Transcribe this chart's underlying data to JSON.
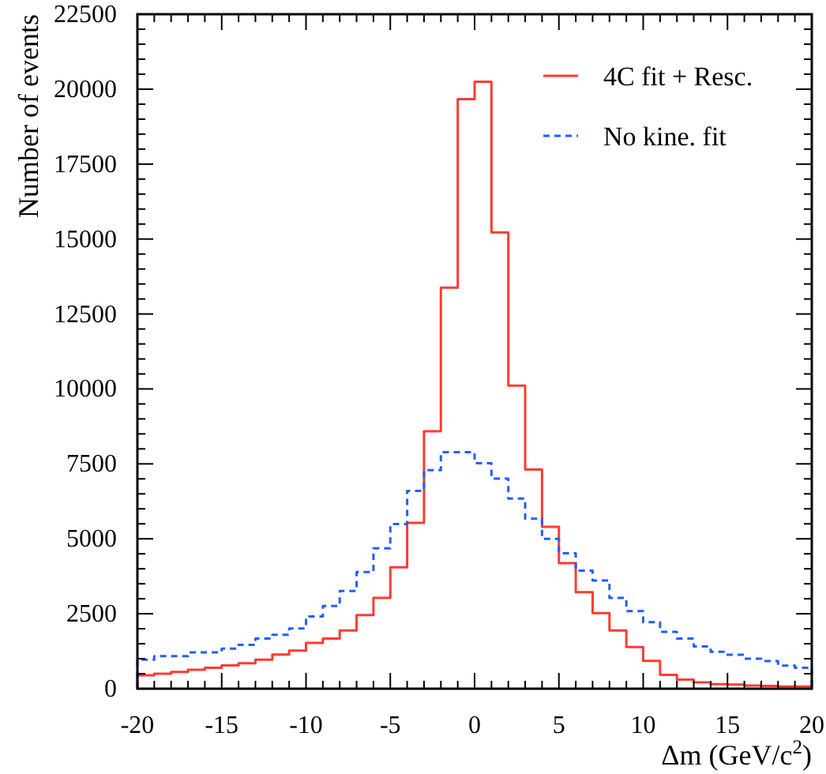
{
  "chart_data": {
    "type": "histogram",
    "xlabel": "Δm (GeV/c$^{2}$)",
    "ylabel": "Number of events",
    "bins": [
      -20,
      -19,
      -18,
      -17,
      -16,
      -15,
      -14,
      -13,
      -12,
      -11,
      -10,
      -9,
      -8,
      -7,
      -6,
      -5,
      -4,
      -3,
      -2,
      -1,
      0,
      1,
      2,
      3,
      4,
      5,
      6,
      7,
      8,
      9,
      10,
      11,
      12,
      13,
      14,
      15,
      16,
      17,
      18,
      19,
      20
    ],
    "series": [
      {
        "name": "4C fit + Resc.",
        "color": "#ff3b2f",
        "line_style": "solid",
        "values": [
          450,
          500,
          560,
          630,
          700,
          775,
          850,
          970,
          1140,
          1270,
          1530,
          1670,
          1940,
          2460,
          3030,
          4050,
          5530,
          8590,
          13380,
          19670,
          20250,
          15220,
          10110,
          7310,
          5400,
          4190,
          3220,
          2520,
          1940,
          1390,
          930,
          460,
          300,
          210,
          150,
          140,
          105,
          90,
          70,
          70
        ]
      },
      {
        "name": "No kine. fit",
        "color": "#1f5fff",
        "line_style": "dashed",
        "values": [
          970,
          1090,
          1090,
          1210,
          1210,
          1340,
          1460,
          1670,
          1800,
          2010,
          2410,
          2760,
          3260,
          3890,
          4680,
          5490,
          6600,
          7290,
          7890,
          7890,
          7520,
          7010,
          6340,
          5670,
          5000,
          4520,
          3940,
          3610,
          3030,
          2590,
          2220,
          1900,
          1670,
          1410,
          1230,
          1130,
          1000,
          920,
          770,
          700
        ]
      }
    ],
    "xlim": [
      -20,
      20
    ],
    "xticks": [
      -20,
      {
        "value": -19,
        "label": null
      },
      {
        "value": -18,
        "label": null
      },
      {
        "value": -17,
        "label": null
      },
      {
        "value": -16,
        "label": null
      },
      -15,
      {
        "value": -14,
        "label": null
      },
      {
        "value": -13,
        "label": null
      },
      {
        "value": -12,
        "label": null
      },
      {
        "value": -11,
        "label": null
      },
      -10,
      {
        "value": -9,
        "label": null
      },
      {
        "value": -8,
        "label": null
      },
      {
        "value": -7,
        "label": null
      },
      {
        "value": -6,
        "label": null
      },
      -5,
      {
        "value": -4,
        "label": null
      },
      {
        "value": -3,
        "label": null
      },
      {
        "value": -2,
        "label": null
      },
      {
        "value": -1,
        "label": null
      },
      0,
      {
        "value": 1,
        "label": null
      },
      {
        "value": 2,
        "label": null
      },
      {
        "value": 3,
        "label": null
      },
      {
        "value": 4,
        "label": null
      },
      5,
      {
        "value": 6,
        "label": null
      },
      {
        "value": 7,
        "label": null
      },
      {
        "value": 8,
        "label": null
      },
      {
        "value": 9,
        "label": null
      },
      10,
      {
        "value": 11,
        "label": null
      },
      {
        "value": 12,
        "label": null
      },
      {
        "value": 13,
        "label": null
      },
      {
        "value": 14,
        "label": null
      },
      15,
      {
        "value": 16,
        "label": null
      },
      {
        "value": 17,
        "label": null
      },
      {
        "value": 18,
        "label": null
      },
      {
        "value": 19,
        "label": null
      },
      20
    ],
    "ylim": [
      0,
      22500
    ],
    "yticks": [
      0,
      {
        "value": 500,
        "label": null
      },
      {
        "value": 1000,
        "label": null
      },
      {
        "value": 1500,
        "label": null
      },
      {
        "value": 2000,
        "label": null
      },
      2500,
      {
        "value": 3000,
        "label": null
      },
      {
        "value": 3500,
        "label": null
      },
      {
        "value": 4000,
        "label": null
      },
      {
        "value": 4500,
        "label": null
      },
      5000,
      {
        "value": 5500,
        "label": null
      },
      {
        "value": 6000,
        "label": null
      },
      {
        "value": 6500,
        "label": null
      },
      {
        "value": 7000,
        "label": null
      },
      7500,
      {
        "value": 8000,
        "label": null
      },
      {
        "value": 8500,
        "label": null
      },
      {
        "value": 9000,
        "label": null
      },
      {
        "value": 9500,
        "label": null
      },
      10000,
      {
        "value": 10500,
        "label": null
      },
      {
        "value": 11000,
        "label": null
      },
      {
        "value": 11500,
        "label": null
      },
      {
        "value": 12000,
        "label": null
      },
      12500,
      {
        "value": 13000,
        "label": null
      },
      {
        "value": 13500,
        "label": null
      },
      {
        "value": 14000,
        "label": null
      },
      {
        "value": 14500,
        "label": null
      },
      15000,
      {
        "value": 15500,
        "label": null
      },
      {
        "value": 16000,
        "label": null
      },
      {
        "value": 16500,
        "label": null
      },
      {
        "value": 17000,
        "label": null
      },
      17500,
      {
        "value": 18000,
        "label": null
      },
      {
        "value": 18500,
        "label": null
      },
      {
        "value": 19000,
        "label": null
      },
      {
        "value": 19500,
        "label": null
      },
      20000,
      {
        "value": 20500,
        "label": null
      },
      {
        "value": 21000,
        "label": null
      },
      {
        "value": 21500,
        "label": null
      },
      {
        "value": 22000,
        "label": null
      },
      22500
    ],
    "grid": false,
    "legend": "top right"
  }
}
